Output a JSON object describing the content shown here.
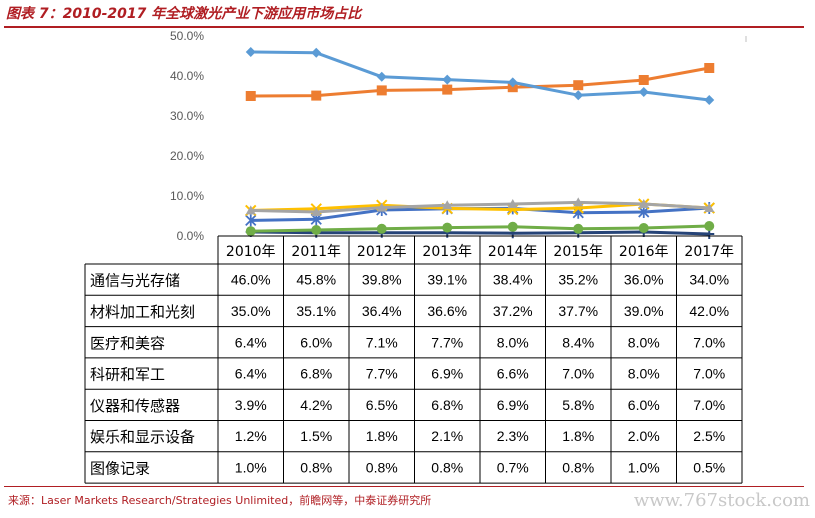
{
  "header": {
    "title": "图表 7：2010-2017 年全球激光产业下游应用市场占比"
  },
  "chart_data": {
    "type": "line",
    "categories": [
      "2010年",
      "2011年",
      "2012年",
      "2013年",
      "2014年",
      "2015年",
      "2016年",
      "2017年"
    ],
    "ylim": [
      0,
      50
    ],
    "yticks": [
      "0.0%",
      "10.0%",
      "20.0%",
      "30.0%",
      "40.0%",
      "50.0%"
    ],
    "grid": false,
    "legend": "data-table",
    "series": [
      {
        "name": "通信与光存储",
        "color": "#5b9bd5",
        "marker": "diamond",
        "values": [
          46.0,
          45.8,
          39.8,
          39.1,
          38.4,
          35.2,
          36.0,
          34.0
        ],
        "labels": [
          "46.0%",
          "45.8%",
          "39.8%",
          "39.1%",
          "38.4%",
          "35.2%",
          "36.0%",
          "34.0%"
        ]
      },
      {
        "name": "材料加工和光刻",
        "color": "#ed7d31",
        "marker": "square",
        "values": [
          35.0,
          35.1,
          36.4,
          36.6,
          37.2,
          37.7,
          39.0,
          42.0
        ],
        "labels": [
          "35.0%",
          "35.1%",
          "36.4%",
          "36.6%",
          "37.2%",
          "37.7%",
          "39.0%",
          "42.0%"
        ]
      },
      {
        "name": "医疗和美容",
        "color": "#a5a5a5",
        "marker": "triangle",
        "values": [
          6.4,
          6.0,
          7.1,
          7.7,
          8.0,
          8.4,
          8.0,
          7.0
        ],
        "labels": [
          "6.4%",
          "6.0%",
          "7.1%",
          "7.7%",
          "8.0%",
          "8.4%",
          "8.0%",
          "7.0%"
        ]
      },
      {
        "name": "科研和军工",
        "color": "#ffc000",
        "marker": "x",
        "values": [
          6.4,
          6.8,
          7.7,
          6.9,
          6.6,
          7.0,
          8.0,
          7.0
        ],
        "labels": [
          "6.4%",
          "6.8%",
          "7.7%",
          "6.9%",
          "6.6%",
          "7.0%",
          "8.0%",
          "7.0%"
        ]
      },
      {
        "name": "仪器和传感器",
        "color": "#4472c4",
        "marker": "star",
        "values": [
          3.9,
          4.2,
          6.5,
          6.8,
          6.9,
          5.8,
          6.0,
          7.0
        ],
        "labels": [
          "3.9%",
          "4.2%",
          "6.5%",
          "6.8%",
          "6.9%",
          "5.8%",
          "6.0%",
          "7.0%"
        ]
      },
      {
        "name": "娱乐和显示设备",
        "color": "#70ad47",
        "marker": "circle",
        "values": [
          1.2,
          1.5,
          1.8,
          2.1,
          2.3,
          1.8,
          2.0,
          2.5
        ],
        "labels": [
          "1.2%",
          "1.5%",
          "1.8%",
          "2.1%",
          "2.3%",
          "1.8%",
          "2.0%",
          "2.5%"
        ]
      },
      {
        "name": "图像记录",
        "color": "#264478",
        "marker": "plus",
        "values": [
          1.0,
          0.8,
          0.8,
          0.8,
          0.7,
          0.8,
          1.0,
          0.5
        ],
        "labels": [
          "1.0%",
          "0.8%",
          "0.8%",
          "0.8%",
          "0.7%",
          "0.8%",
          "1.0%",
          "0.5%"
        ]
      }
    ]
  },
  "footer": {
    "source": "来源：Laser Markets Research/Strategies Unlimited，前瞻网等，中泰证券研究所",
    "watermark": "www.767stock.com"
  }
}
